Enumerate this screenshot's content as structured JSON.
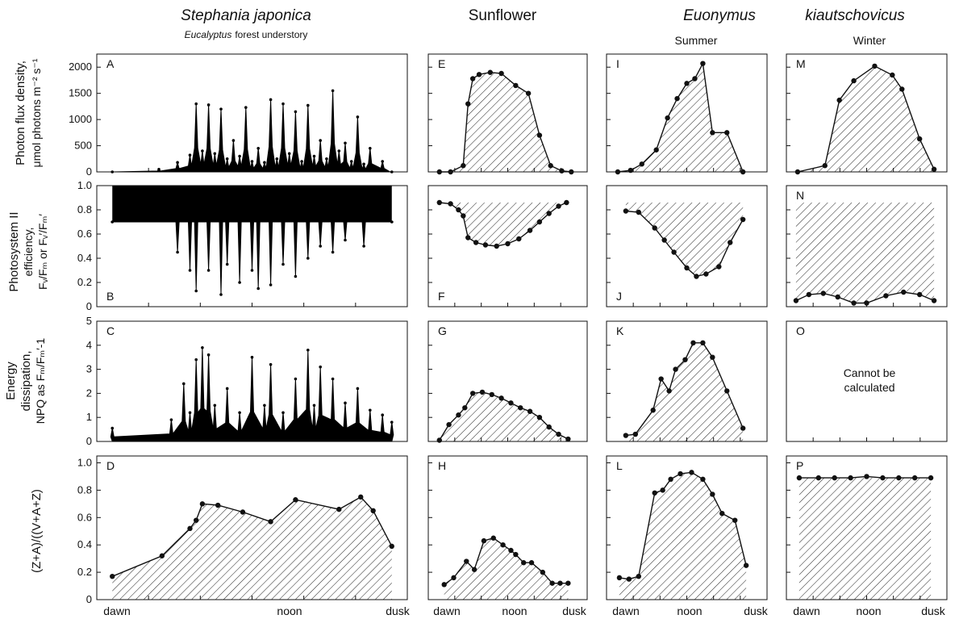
{
  "header": {
    "col1_title": "Stephania japonica",
    "col1_subtitle_italic": "Eucalyptus",
    "col1_subtitle_rest": "forest understory",
    "col2_title": "Sunflower",
    "col3_title_a": "Euonymus",
    "col3_title_b": "kiautschovicus",
    "col3_season": "Summer",
    "col4_season": "Winter"
  },
  "row_labels": {
    "r1_l1": "Photon flux density,",
    "r1_l2": "μmol photons m⁻² s⁻¹",
    "r2_l1": "Photosystem II",
    "r2_l2": "efficiency,",
    "r2_l3": "Fᵥ/Fₘ or Fᵥ′/Fₘ′",
    "r3_l1": "Energy",
    "r3_l2": "dissipation,",
    "r3_l3": "NPQ as Fₘ/Fₘ′-1",
    "r4_l1": "(Z+A)/((V+A+Z)"
  },
  "x_ticks": {
    "dawn": "dawn",
    "noon": "noon",
    "dusk": "dusk"
  },
  "panel_O_note_l1": "Cannot be",
  "panel_O_note_l2": "calculated",
  "style": {
    "ink": "#111111",
    "hatch": "#222222",
    "background": "#ffffff"
  },
  "chart_data": [
    {
      "id": "A",
      "type": "area",
      "ylim": [
        0,
        2250
      ],
      "yticks": [
        0,
        500,
        1000,
        1500,
        2000
      ],
      "xlim": [
        0,
        1
      ],
      "x": [
        0.05,
        0.2,
        0.26,
        0.3,
        0.32,
        0.34,
        0.36,
        0.38,
        0.4,
        0.42,
        0.44,
        0.46,
        0.48,
        0.5,
        0.52,
        0.54,
        0.56,
        0.58,
        0.6,
        0.62,
        0.64,
        0.66,
        0.68,
        0.7,
        0.72,
        0.74,
        0.76,
        0.78,
        0.8,
        0.82,
        0.84,
        0.86,
        0.88,
        0.92,
        0.95
      ],
      "y": [
        0,
        50,
        180,
        320,
        1300,
        400,
        1280,
        350,
        1200,
        250,
        600,
        300,
        1230,
        200,
        450,
        180,
        1380,
        250,
        1300,
        350,
        1150,
        200,
        1270,
        300,
        600,
        250,
        1550,
        400,
        550,
        200,
        1050,
        150,
        450,
        200,
        0
      ]
    },
    {
      "id": "E",
      "type": "area",
      "ylim": [
        0,
        2250
      ],
      "yticks": [
        0,
        500,
        1000,
        1500,
        2000
      ],
      "xlim": [
        0,
        1
      ],
      "x": [
        0.07,
        0.14,
        0.22,
        0.25,
        0.28,
        0.32,
        0.39,
        0.46,
        0.55,
        0.63,
        0.7,
        0.77,
        0.84,
        0.9
      ],
      "y": [
        0,
        0,
        120,
        1300,
        1780,
        1860,
        1900,
        1880,
        1650,
        1500,
        700,
        120,
        20,
        0
      ]
    },
    {
      "id": "I",
      "type": "area",
      "ylim": [
        0,
        2250
      ],
      "yticks": [
        0,
        500,
        1000,
        1500,
        2000
      ],
      "xlim": [
        0,
        1
      ],
      "x": [
        0.07,
        0.15,
        0.22,
        0.31,
        0.38,
        0.44,
        0.5,
        0.55,
        0.6,
        0.66,
        0.75,
        0.85
      ],
      "y": [
        0,
        30,
        150,
        420,
        1030,
        1400,
        1690,
        1780,
        2070,
        750,
        750,
        0
      ]
    },
    {
      "id": "M",
      "type": "area",
      "ylim": [
        0,
        2250
      ],
      "yticks": [
        0,
        500,
        1000,
        1500,
        2000
      ],
      "xlim": [
        0,
        1
      ],
      "x": [
        0.07,
        0.24,
        0.33,
        0.42,
        0.55,
        0.66,
        0.72,
        0.83,
        0.92
      ],
      "y": [
        0,
        120,
        1370,
        1740,
        2020,
        1850,
        1580,
        630,
        50
      ]
    },
    {
      "id": "B",
      "type": "bar",
      "ylim": [
        0,
        1
      ],
      "yticks": [
        0,
        0.2,
        0.4,
        0.6,
        0.8,
        1
      ],
      "xlim": [
        0,
        1
      ],
      "x": [
        0.05,
        0.26,
        0.3,
        0.32,
        0.36,
        0.4,
        0.42,
        0.46,
        0.5,
        0.52,
        0.56,
        0.6,
        0.64,
        0.68,
        0.72,
        0.76,
        0.8,
        0.86,
        0.95
      ],
      "y": [
        0.7,
        0.45,
        0.3,
        0.13,
        0.3,
        0.1,
        0.35,
        0.2,
        0.3,
        0.15,
        0.18,
        0.35,
        0.25,
        0.4,
        0.5,
        0.45,
        0.55,
        0.5,
        0.7
      ]
    },
    {
      "id": "F",
      "type": "line",
      "ylim": [
        0,
        1
      ],
      "yticks": [
        0,
        0.2,
        0.4,
        0.6,
        0.8,
        1
      ],
      "xlim": [
        0,
        1
      ],
      "x": [
        0.07,
        0.14,
        0.19,
        0.22,
        0.25,
        0.3,
        0.36,
        0.43,
        0.5,
        0.57,
        0.64,
        0.7,
        0.76,
        0.82,
        0.87
      ],
      "y": [
        0.86,
        0.85,
        0.8,
        0.75,
        0.57,
        0.53,
        0.51,
        0.5,
        0.52,
        0.56,
        0.63,
        0.7,
        0.77,
        0.83,
        0.86
      ]
    },
    {
      "id": "J",
      "type": "line",
      "ylim": [
        0,
        1
      ],
      "yticks": [
        0,
        0.2,
        0.4,
        0.6,
        0.8,
        1
      ],
      "xlim": [
        0,
        1
      ],
      "x": [
        0.12,
        0.2,
        0.3,
        0.36,
        0.42,
        0.5,
        0.56,
        0.62,
        0.7,
        0.77,
        0.85
      ],
      "y": [
        0.79,
        0.78,
        0.65,
        0.55,
        0.45,
        0.32,
        0.25,
        0.27,
        0.33,
        0.53,
        0.72
      ]
    },
    {
      "id": "N",
      "type": "line",
      "ylim": [
        0,
        1
      ],
      "yticks": [
        0,
        0.2,
        0.4,
        0.6,
        0.8,
        1
      ],
      "xlim": [
        0,
        1
      ],
      "x": [
        0.06,
        0.14,
        0.23,
        0.32,
        0.42,
        0.5,
        0.62,
        0.73,
        0.83,
        0.92
      ],
      "y": [
        0.05,
        0.1,
        0.11,
        0.08,
        0.03,
        0.03,
        0.09,
        0.12,
        0.1,
        0.05
      ]
    },
    {
      "id": "C",
      "type": "area",
      "ylim": [
        0,
        5
      ],
      "yticks": [
        0,
        1,
        2,
        3,
        4,
        5
      ],
      "xlim": [
        0,
        1
      ],
      "x": [
        0.05,
        0.24,
        0.28,
        0.3,
        0.32,
        0.34,
        0.36,
        0.38,
        0.42,
        0.46,
        0.5,
        0.54,
        0.56,
        0.6,
        0.64,
        0.68,
        0.7,
        0.72,
        0.76,
        0.8,
        0.84,
        0.88,
        0.92,
        0.95
      ],
      "y": [
        0.55,
        0.9,
        2.4,
        1.2,
        3.4,
        3.9,
        3.6,
        1.5,
        2.2,
        1.2,
        3.5,
        1.5,
        3.2,
        1.2,
        2.6,
        3.8,
        1.5,
        3.1,
        2.6,
        1.6,
        2.2,
        1.3,
        1.1,
        0.8
      ]
    },
    {
      "id": "G",
      "type": "line",
      "ylim": [
        0,
        5
      ],
      "yticks": [
        0,
        1,
        2,
        3,
        4,
        5
      ],
      "xlim": [
        0,
        1
      ],
      "x": [
        0.07,
        0.13,
        0.19,
        0.23,
        0.28,
        0.34,
        0.4,
        0.46,
        0.52,
        0.58,
        0.64,
        0.7,
        0.76,
        0.82,
        0.88
      ],
      "y": [
        0.05,
        0.7,
        1.1,
        1.4,
        2.0,
        2.05,
        1.95,
        1.8,
        1.6,
        1.4,
        1.25,
        1.0,
        0.6,
        0.3,
        0.1
      ]
    },
    {
      "id": "K",
      "type": "line",
      "ylim": [
        0,
        5
      ],
      "yticks": [
        0,
        1,
        2,
        3,
        4,
        5
      ],
      "xlim": [
        0,
        1
      ],
      "x": [
        0.12,
        0.18,
        0.29,
        0.34,
        0.39,
        0.43,
        0.49,
        0.54,
        0.6,
        0.66,
        0.75,
        0.85
      ],
      "y": [
        0.25,
        0.3,
        1.3,
        2.6,
        2.1,
        3.0,
        3.4,
        4.1,
        4.1,
        3.5,
        2.1,
        0.55
      ]
    },
    {
      "id": "D",
      "type": "area",
      "ylim": [
        0,
        1.05
      ],
      "yticks": [
        0,
        0.2,
        0.4,
        0.6,
        0.8,
        1.0
      ],
      "xlim": [
        0,
        1
      ],
      "x": [
        0.05,
        0.21,
        0.3,
        0.32,
        0.34,
        0.39,
        0.47,
        0.56,
        0.64,
        0.78,
        0.85,
        0.89,
        0.95
      ],
      "y": [
        0.17,
        0.32,
        0.52,
        0.58,
        0.7,
        0.69,
        0.64,
        0.57,
        0.73,
        0.66,
        0.75,
        0.65,
        0.39
      ]
    },
    {
      "id": "H",
      "type": "line",
      "ylim": [
        0,
        1.05
      ],
      "yticks": [
        0,
        0.2,
        0.4,
        0.6,
        0.8,
        1.0
      ],
      "xlim": [
        0,
        1
      ],
      "x": [
        0.1,
        0.16,
        0.24,
        0.29,
        0.35,
        0.41,
        0.47,
        0.52,
        0.55,
        0.6,
        0.65,
        0.72,
        0.78,
        0.83,
        0.88
      ],
      "y": [
        0.11,
        0.16,
        0.28,
        0.22,
        0.43,
        0.45,
        0.4,
        0.36,
        0.33,
        0.27,
        0.27,
        0.2,
        0.12,
        0.12,
        0.12
      ]
    },
    {
      "id": "L",
      "type": "line",
      "ylim": [
        0,
        1.05
      ],
      "yticks": [
        0,
        0.2,
        0.4,
        0.6,
        0.8,
        1.0
      ],
      "xlim": [
        0,
        1
      ],
      "x": [
        0.08,
        0.14,
        0.2,
        0.3,
        0.35,
        0.4,
        0.46,
        0.53,
        0.6,
        0.66,
        0.72,
        0.8,
        0.87
      ],
      "y": [
        0.16,
        0.15,
        0.17,
        0.78,
        0.8,
        0.88,
        0.92,
        0.93,
        0.88,
        0.77,
        0.63,
        0.58,
        0.25
      ]
    },
    {
      "id": "P",
      "type": "line",
      "ylim": [
        0,
        1.05
      ],
      "yticks": [
        0,
        0.2,
        0.4,
        0.6,
        0.8,
        1.0
      ],
      "xlim": [
        0,
        1
      ],
      "x": [
        0.08,
        0.2,
        0.3,
        0.4,
        0.5,
        0.6,
        0.7,
        0.8,
        0.9
      ],
      "y": [
        0.89,
        0.89,
        0.89,
        0.89,
        0.9,
        0.89,
        0.89,
        0.89,
        0.89
      ]
    }
  ]
}
